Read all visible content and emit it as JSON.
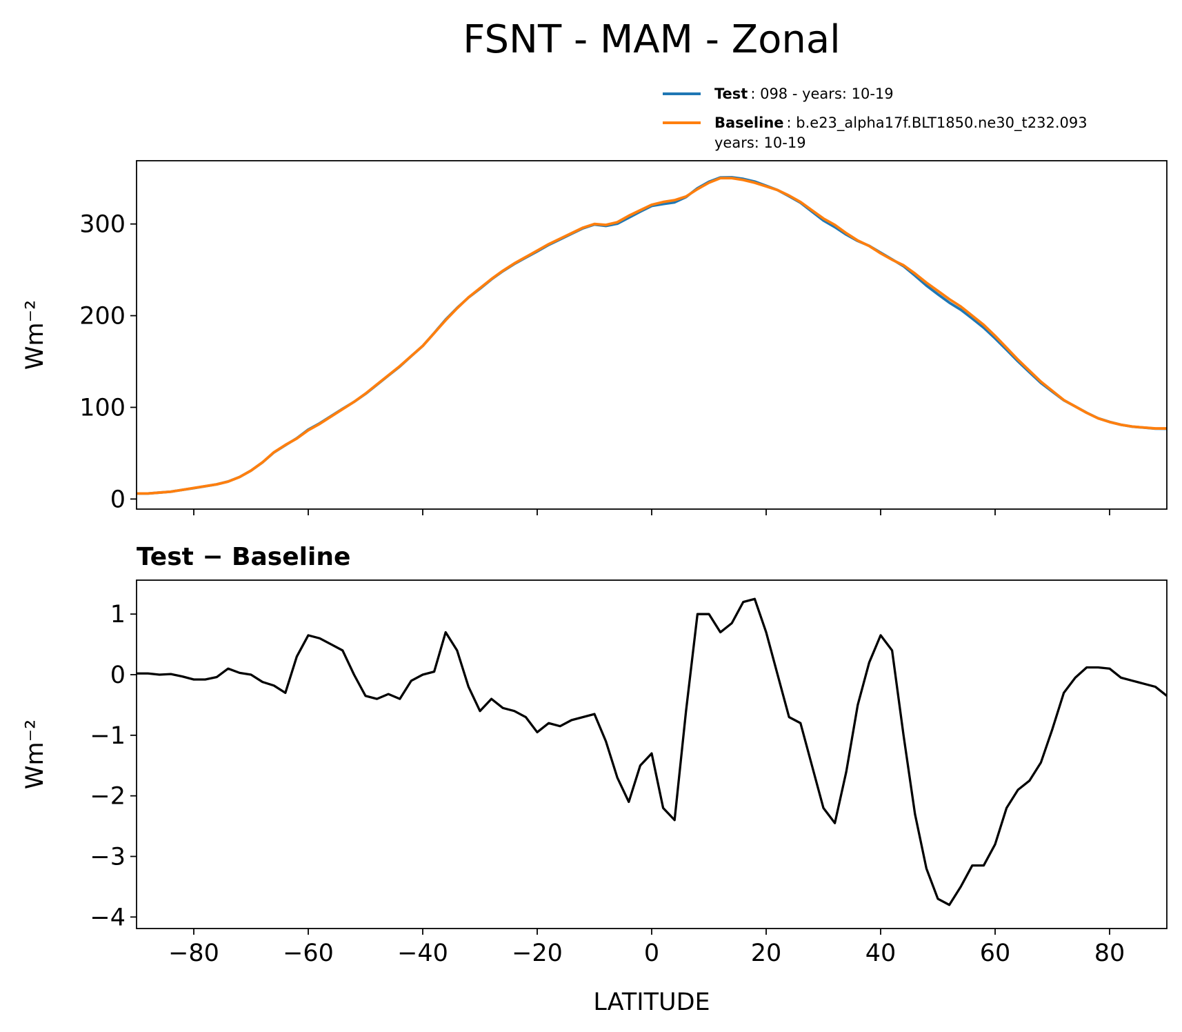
{
  "figure_title": "FSNT - MAM - Zonal",
  "chart_data": [
    {
      "type": "line",
      "ylabel": "Wm⁻²",
      "x": [
        -90,
        -88,
        -86,
        -84,
        -82,
        -80,
        -78,
        -76,
        -74,
        -72,
        -70,
        -68,
        -66,
        -64,
        -62,
        -60,
        -58,
        -56,
        -54,
        -52,
        -50,
        -48,
        -46,
        -44,
        -42,
        -40,
        -38,
        -36,
        -34,
        -32,
        -30,
        -28,
        -26,
        -24,
        -22,
        -20,
        -18,
        -16,
        -14,
        -12,
        -10,
        -8,
        -6,
        -4,
        -2,
        0,
        2,
        4,
        6,
        8,
        10,
        12,
        14,
        16,
        18,
        20,
        22,
        24,
        26,
        28,
        30,
        32,
        34,
        36,
        38,
        40,
        42,
        44,
        46,
        48,
        50,
        52,
        54,
        56,
        58,
        60,
        62,
        64,
        66,
        68,
        70,
        72,
        74,
        76,
        78,
        80,
        82,
        84,
        86,
        88,
        90
      ],
      "series": [
        {
          "name": "Test",
          "label": [
            ": 098 - years: 10-19"
          ],
          "color": "#1f77b4",
          "values": [
            6.0,
            6.0,
            7.0,
            8.0,
            10.0,
            11.9,
            13.9,
            16.0,
            19.1,
            24.0,
            31.0,
            39.9,
            50.8,
            58.7,
            66.3,
            75.7,
            82.6,
            90.5,
            98.4,
            106.0,
            114.7,
            124.6,
            134.7,
            144.6,
            155.9,
            167.0,
            181.1,
            195.7,
            208.4,
            219.8,
            229.4,
            239.6,
            248.5,
            256.4,
            263.3,
            270.1,
            277.2,
            283.2,
            289.3,
            295.3,
            299.4,
            297.9,
            300.3,
            306.9,
            313.5,
            319.7,
            321.8,
            323.6,
            329.4,
            339.0,
            346.0,
            350.7,
            350.9,
            349.2,
            346.3,
            341.7,
            337.0,
            330.3,
            323.2,
            313.5,
            303.8,
            296.6,
            288.4,
            281.5,
            276.2,
            268.7,
            261.4,
            254.0,
            243.7,
            232.8,
            223.3,
            214.2,
            206.5,
            196.9,
            186.9,
            175.2,
            162.8,
            150.1,
            138.3,
            126.6,
            117.1,
            107.7,
            101.0,
            94.1,
            88.1,
            84.1,
            81.0,
            78.9,
            77.9,
            76.8,
            76.7
          ]
        },
        {
          "name": "Baseline",
          "label": [
            ": b.e23_alpha17f.BLT1850.ne30_t232.093",
            "years: 10-19"
          ],
          "color": "#ff7f0e",
          "values": [
            6,
            6,
            7,
            8,
            10,
            12,
            14,
            16,
            19,
            24,
            31,
            40,
            51,
            59,
            66,
            75,
            82,
            90,
            98,
            106,
            115,
            125,
            135,
            145,
            156,
            167,
            181,
            195,
            208,
            220,
            230,
            240,
            249,
            257,
            264,
            271,
            278,
            284,
            290,
            296,
            300,
            299,
            302,
            309,
            315,
            321,
            324,
            326,
            330,
            338,
            345,
            350,
            350,
            348,
            345,
            341,
            337,
            331,
            324,
            315,
            306,
            299,
            290,
            282,
            276,
            268,
            261,
            255,
            246,
            236,
            227,
            218,
            210,
            200,
            190,
            178,
            165,
            152,
            140,
            128,
            118,
            108,
            101,
            94,
            88,
            84,
            81,
            79,
            78,
            77,
            77
          ]
        }
      ],
      "xlim": [
        -90,
        90
      ],
      "xticks": [
        -80,
        -60,
        -40,
        -20,
        0,
        20,
        40,
        60,
        80
      ],
      "ylim": [
        -11,
        369
      ],
      "yticks": [
        0,
        100,
        200,
        300
      ],
      "legend": "upper right outside"
    },
    {
      "type": "line",
      "subtitle": "Test − Baseline",
      "ylabel": "Wm⁻²",
      "xlabel": "LATITUDE",
      "x": [
        -90,
        -88,
        -86,
        -84,
        -82,
        -80,
        -78,
        -76,
        -74,
        -72,
        -70,
        -68,
        -66,
        -64,
        -62,
        -60,
        -58,
        -56,
        -54,
        -52,
        -50,
        -48,
        -46,
        -44,
        -42,
        -40,
        -38,
        -36,
        -34,
        -32,
        -30,
        -28,
        -26,
        -24,
        -22,
        -20,
        -18,
        -16,
        -14,
        -12,
        -10,
        -8,
        -6,
        -4,
        -2,
        0,
        2,
        4,
        6,
        8,
        10,
        12,
        14,
        16,
        18,
        20,
        22,
        24,
        26,
        28,
        30,
        32,
        34,
        36,
        38,
        40,
        42,
        44,
        46,
        48,
        50,
        52,
        54,
        56,
        58,
        60,
        62,
        64,
        66,
        68,
        70,
        72,
        74,
        76,
        78,
        80,
        82,
        84,
        86,
        88,
        90
      ],
      "series": [
        {
          "color": "#000000",
          "values": [
            0.02,
            0.02,
            0.0,
            0.01,
            -0.03,
            -0.08,
            -0.08,
            -0.04,
            0.1,
            0.03,
            0.0,
            -0.12,
            -0.18,
            -0.3,
            0.3,
            0.65,
            0.6,
            0.5,
            0.4,
            0.0,
            -0.35,
            -0.4,
            -0.32,
            -0.4,
            -0.1,
            0.0,
            0.05,
            0.7,
            0.4,
            -0.2,
            -0.6,
            -0.4,
            -0.55,
            -0.6,
            -0.7,
            -0.95,
            -0.8,
            -0.85,
            -0.75,
            -0.7,
            -0.65,
            -1.1,
            -1.7,
            -2.1,
            -1.5,
            -1.3,
            -2.2,
            -2.4,
            -0.6,
            1.0,
            1.0,
            0.7,
            0.85,
            1.2,
            1.25,
            0.7,
            0.0,
            -0.7,
            -0.8,
            -1.5,
            -2.2,
            -2.45,
            -1.6,
            -0.5,
            0.2,
            0.65,
            0.4,
            -1.0,
            -2.3,
            -3.2,
            -3.7,
            -3.8,
            -3.5,
            -3.15,
            -3.15,
            -2.8,
            -2.2,
            -1.9,
            -1.75,
            -1.45,
            -0.9,
            -0.3,
            -0.05,
            0.12,
            0.12,
            0.1,
            -0.05,
            -0.1,
            -0.15,
            -0.2,
            -0.35
          ]
        }
      ],
      "xlim": [
        -90,
        90
      ],
      "xticks": [
        {
          "value": -80,
          "label": "−80"
        },
        {
          "value": -60,
          "label": "−60"
        },
        {
          "value": -40,
          "label": "−40"
        },
        {
          "value": -20,
          "label": "−20"
        },
        0,
        20,
        40,
        60,
        80
      ],
      "ylim": [
        -4.19,
        1.56
      ],
      "yticks": [
        {
          "value": -4,
          "label": "−4"
        },
        {
          "value": -3,
          "label": "−3"
        },
        {
          "value": -2,
          "label": "−2"
        },
        {
          "value": -1,
          "label": "−1"
        },
        0,
        1
      ]
    }
  ]
}
